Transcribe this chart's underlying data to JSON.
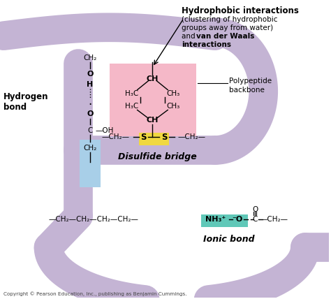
{
  "bg_color": "#ffffff",
  "ribbon_color": "#c4b4d4",
  "ribbon_lw": 30,
  "hydrophobic_box_color": "#f5b8c8",
  "hydrogen_box_color": "#a8cfe8",
  "disulfide_box_color": "#f0d840",
  "ionic_nh3_color": "#60c8b8",
  "text_color": "#000000",
  "copyright_text": "Copyright © Pearson Education, Inc., publishing as Benjamin Cummings.",
  "hydrophobic_title": "Hydrophobic interactions",
  "hydrophobic_sub1": "(clustering of hydrophobic",
  "hydrophobic_sub2": "groups away from water)",
  "hydrophobic_and": "and ",
  "hydrophobic_vdw": "van der Waals",
  "hydrophobic_int": "interactions",
  "polypeptide_label1": "Polypeptide",
  "polypeptide_label2": "backbone",
  "hydrogen_label": "Hydrogen\nbond",
  "disulfide_label": "Disulfide bridge",
  "ionic_label": "Ionic bond"
}
